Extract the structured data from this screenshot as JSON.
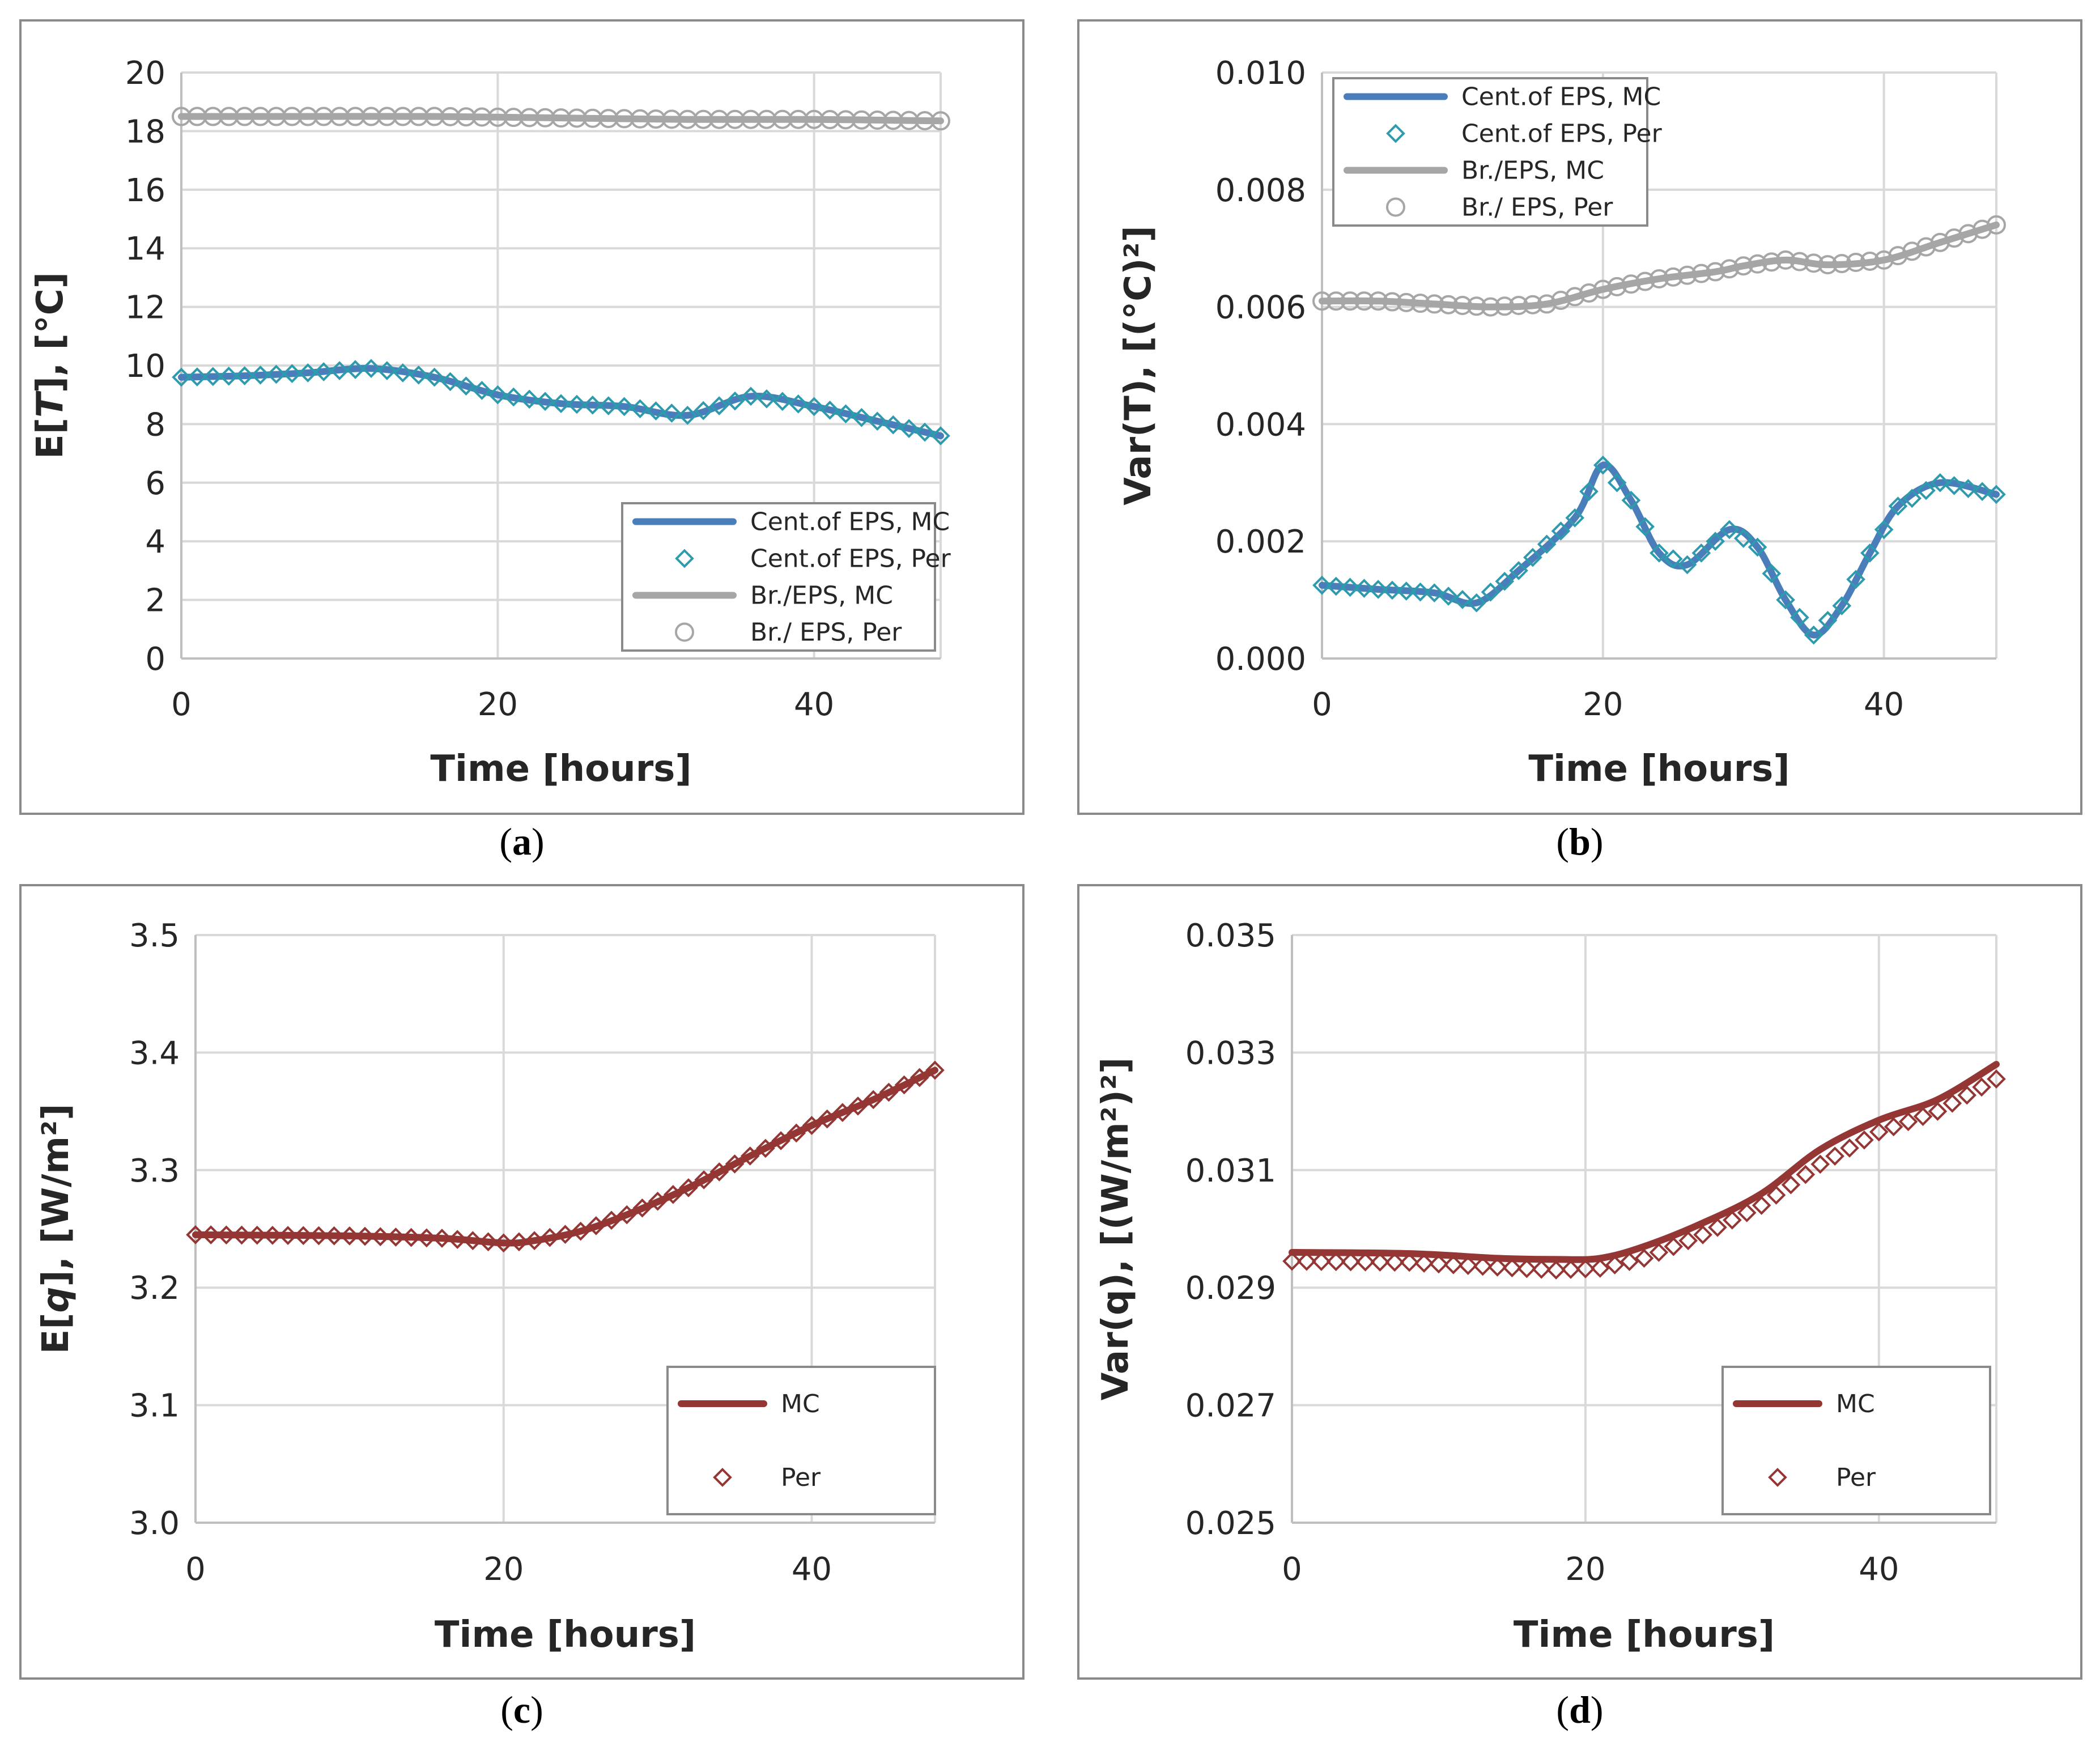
{
  "chart_data": [
    {
      "id": "a",
      "type": "line",
      "caption": {
        "open": "(",
        "letter": "a",
        "close": ")"
      },
      "xlabel": "Time [hours]",
      "ylabel": [
        "E[",
        "T",
        "], [°C]"
      ],
      "xlim": [
        0,
        48
      ],
      "ylim": [
        0,
        20
      ],
      "xticks": [
        0,
        20,
        40
      ],
      "yticks": [
        0,
        2,
        4,
        6,
        8,
        10,
        12,
        14,
        16,
        18,
        20
      ],
      "ytick_labels": [
        "0",
        "2",
        "4",
        "6",
        "8",
        "10",
        "12",
        "14",
        "16",
        "18",
        "20"
      ],
      "legend_position": "bottom-right",
      "series": [
        {
          "name": "Cent.of EPS, MC",
          "style": "line",
          "color": "#4a7ebb",
          "x": [
            0,
            4,
            8,
            12,
            16,
            20,
            24,
            28,
            32,
            36,
            40,
            44,
            48
          ],
          "y": [
            9.6,
            9.65,
            9.75,
            9.9,
            9.6,
            9.0,
            8.7,
            8.6,
            8.3,
            8.95,
            8.6,
            8.1,
            7.6
          ]
        },
        {
          "name": "Cent.of EPS, Per",
          "style": "diamond",
          "color": "#2e9aae",
          "x": [
            0,
            4,
            8,
            12,
            16,
            20,
            24,
            28,
            32,
            36,
            40,
            44,
            48
          ],
          "y": [
            9.6,
            9.65,
            9.75,
            9.9,
            9.6,
            9.0,
            8.7,
            8.6,
            8.3,
            8.95,
            8.6,
            8.1,
            7.6
          ]
        },
        {
          "name": "Br./EPS, MC",
          "style": "line",
          "color": "#a6a6a6",
          "x": [
            0,
            8,
            16,
            24,
            32,
            40,
            48
          ],
          "y": [
            18.5,
            18.5,
            18.5,
            18.45,
            18.4,
            18.4,
            18.35
          ]
        },
        {
          "name": "Br./ EPS, Per",
          "style": "circle",
          "color": "#a6a6a6",
          "x": [
            0,
            8,
            16,
            24,
            32,
            40,
            48
          ],
          "y": [
            18.5,
            18.5,
            18.5,
            18.45,
            18.4,
            18.4,
            18.35
          ]
        }
      ]
    },
    {
      "id": "b",
      "type": "line",
      "caption": {
        "open": "(",
        "letter": "b",
        "close": ")"
      },
      "xlabel": "Time [hours]",
      "ylabel": [
        "Var(T), [(°C)²]"
      ],
      "xlim": [
        0,
        48
      ],
      "ylim": [
        0,
        0.01
      ],
      "xticks": [
        0,
        20,
        40
      ],
      "yticks": [
        0,
        0.002,
        0.004,
        0.006,
        0.008,
        0.01
      ],
      "ytick_labels": [
        "0.000",
        "0.002",
        "0.004",
        "0.006",
        "0.008",
        "0.010"
      ],
      "legend_position": "top-left",
      "series": [
        {
          "name": "Cent.of EPS, MC",
          "style": "line",
          "color": "#4a7ebb",
          "x": [
            0,
            4,
            8,
            11,
            14,
            18,
            20,
            22,
            24,
            26,
            29,
            31,
            33,
            35,
            37,
            39,
            41,
            44,
            48
          ],
          "y": [
            0.00125,
            0.00118,
            0.00112,
            0.00095,
            0.0015,
            0.0024,
            0.0033,
            0.0027,
            0.0018,
            0.0016,
            0.0022,
            0.0019,
            0.001,
            0.0004,
            0.0009,
            0.0018,
            0.0026,
            0.003,
            0.0028
          ]
        },
        {
          "name": "Cent.of EPS, Per",
          "style": "diamond",
          "color": "#2e9aae",
          "x": [
            0,
            4,
            8,
            11,
            14,
            18,
            20,
            22,
            24,
            26,
            29,
            31,
            33,
            35,
            37,
            39,
            41,
            44,
            48
          ],
          "y": [
            0.00125,
            0.00118,
            0.00112,
            0.00095,
            0.0015,
            0.0024,
            0.0033,
            0.0027,
            0.0018,
            0.0016,
            0.0022,
            0.0019,
            0.001,
            0.0004,
            0.0009,
            0.0018,
            0.0026,
            0.003,
            0.0028
          ]
        },
        {
          "name": "Br./EPS, MC",
          "style": "line",
          "color": "#a6a6a6",
          "x": [
            0,
            4,
            8,
            12,
            16,
            20,
            24,
            28,
            30,
            33,
            36,
            40,
            44,
            48
          ],
          "y": [
            0.0061,
            0.0061,
            0.00605,
            0.006,
            0.00605,
            0.0063,
            0.00648,
            0.0066,
            0.0067,
            0.0068,
            0.00672,
            0.0068,
            0.0071,
            0.0074
          ]
        },
        {
          "name": "Br./ EPS, Per",
          "style": "circle",
          "color": "#a6a6a6",
          "x": [
            0,
            4,
            8,
            12,
            16,
            20,
            24,
            28,
            30,
            33,
            36,
            40,
            44,
            48
          ],
          "y": [
            0.0061,
            0.0061,
            0.00605,
            0.006,
            0.00605,
            0.0063,
            0.00648,
            0.0066,
            0.0067,
            0.0068,
            0.00672,
            0.0068,
            0.0071,
            0.0074
          ]
        }
      ]
    },
    {
      "id": "c",
      "type": "line",
      "caption": {
        "open": "(",
        "letter": "c",
        "close": ")"
      },
      "xlabel": "Time [hours]",
      "ylabel": [
        "E[",
        "q",
        "], [W/m²]"
      ],
      "xlim": [
        0,
        48
      ],
      "ylim": [
        3.0,
        3.5
      ],
      "xticks": [
        0,
        20,
        40
      ],
      "yticks": [
        3.0,
        3.1,
        3.2,
        3.3,
        3.4,
        3.5
      ],
      "ytick_labels": [
        "3.0",
        "3.1",
        "3.2",
        "3.3",
        "3.4",
        "3.5"
      ],
      "legend_position": "bottom-right",
      "series": [
        {
          "name": "MC",
          "style": "line",
          "color": "#943634",
          "x": [
            0,
            10,
            16,
            20,
            22,
            25,
            28,
            32,
            36,
            40,
            44,
            48
          ],
          "y": [
            3.245,
            3.244,
            3.242,
            3.238,
            3.24,
            3.248,
            3.262,
            3.285,
            3.312,
            3.338,
            3.36,
            3.385
          ]
        },
        {
          "name": "Per",
          "style": "diamond",
          "color": "#943634",
          "x": [
            0,
            10,
            16,
            20,
            22,
            25,
            28,
            32,
            36,
            40,
            44,
            48
          ],
          "y": [
            3.245,
            3.244,
            3.242,
            3.238,
            3.24,
            3.248,
            3.262,
            3.285,
            3.312,
            3.338,
            3.36,
            3.385
          ]
        }
      ]
    },
    {
      "id": "d",
      "type": "line",
      "caption": {
        "open": "(",
        "letter": "d",
        "close": ")"
      },
      "xlabel": "Time [hours]",
      "ylabel": [
        "Var(q), [(W/m²)²]"
      ],
      "xlim": [
        0,
        48
      ],
      "ylim": [
        0.025,
        0.035
      ],
      "xticks": [
        0,
        20,
        40
      ],
      "yticks": [
        0.025,
        0.027,
        0.029,
        0.031,
        0.033,
        0.035
      ],
      "ytick_labels": [
        "0.025",
        "0.027",
        "0.029",
        "0.031",
        "0.033",
        "0.035"
      ],
      "legend_position": "bottom-right",
      "series": [
        {
          "name": "MC",
          "style": "line",
          "color": "#943634",
          "x": [
            0,
            8,
            14,
            18,
            21,
            24,
            28,
            32,
            36,
            40,
            44,
            48
          ],
          "y": [
            0.0296,
            0.02958,
            0.0295,
            0.02948,
            0.0295,
            0.0297,
            0.0301,
            0.0306,
            0.03135,
            0.03185,
            0.0322,
            0.0328
          ]
        },
        {
          "name": "Per",
          "style": "diamond",
          "color": "#943634",
          "x": [
            0,
            8,
            14,
            18,
            21,
            24,
            28,
            32,
            36,
            40,
            44,
            48
          ],
          "y": [
            0.02945,
            0.02943,
            0.02935,
            0.0293,
            0.02933,
            0.0295,
            0.0299,
            0.0304,
            0.0311,
            0.03165,
            0.032,
            0.03255
          ]
        }
      ]
    }
  ]
}
